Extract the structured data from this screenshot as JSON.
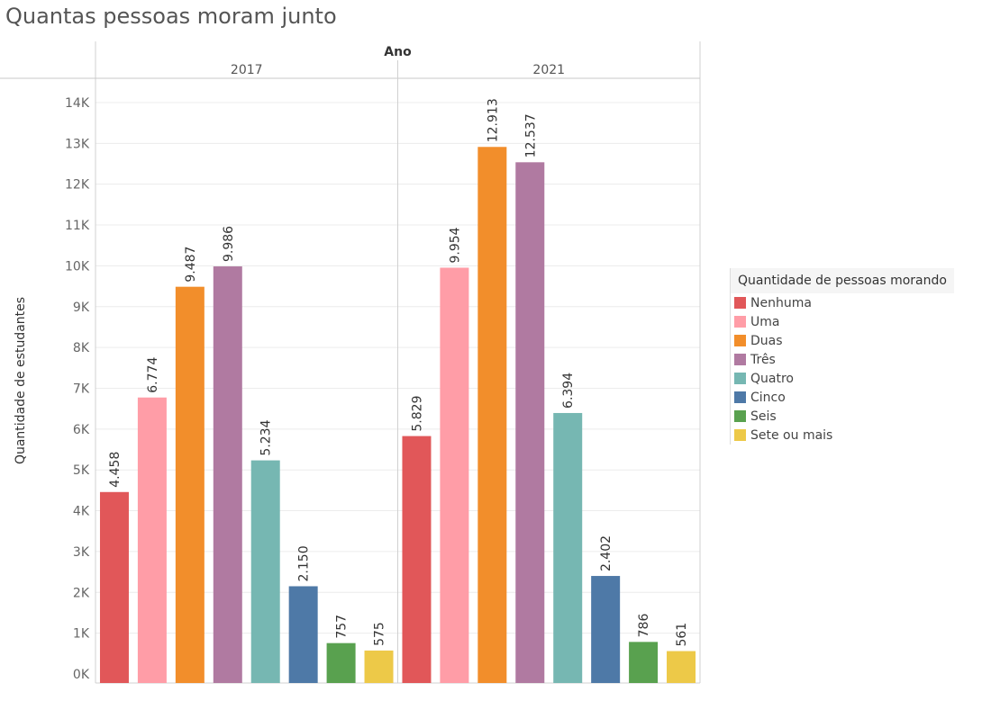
{
  "title": "Quantas pessoas moram junto",
  "chart_data": {
    "type": "bar",
    "column_header": "Ano",
    "panels": [
      "2017",
      "2021"
    ],
    "categories": [
      "Nenhuma",
      "Uma",
      "Duas",
      "Três",
      "Quatro",
      "Cinco",
      "Seis",
      "Sete ou mais"
    ],
    "values": [
      [
        4458,
        6774,
        9487,
        9986,
        5234,
        2150,
        757,
        575
      ],
      [
        5829,
        9954,
        12913,
        12537,
        6394,
        2402,
        786,
        561
      ]
    ],
    "data_labels": [
      [
        "4.458",
        "6.774",
        "9.487",
        "9.986",
        "5.234",
        "2.150",
        "757",
        "575"
      ],
      [
        "5.829",
        "9.954",
        "12.913",
        "12.537",
        "6.394",
        "2.402",
        "786",
        "561"
      ]
    ],
    "colors": [
      "#e15759",
      "#ff9da7",
      "#f28e2b",
      "#b07aa1",
      "#76b7b2",
      "#4e79a7",
      "#59a14f",
      "#edc948"
    ],
    "ylabel": "Quantidade de estudantes",
    "ylim": [
      0,
      14000
    ],
    "yticks": [
      0,
      1000,
      2000,
      3000,
      4000,
      5000,
      6000,
      7000,
      8000,
      9000,
      10000,
      11000,
      12000,
      13000,
      14000
    ],
    "ytick_labels": [
      "0K",
      "1K",
      "2K",
      "3K",
      "4K",
      "5K",
      "6K",
      "7K",
      "8K",
      "9K",
      "10K",
      "11K",
      "12K",
      "13K",
      "14K"
    ],
    "grid": true,
    "legend_title": "Quantidade de pessoas morando",
    "legend_position": "right"
  }
}
